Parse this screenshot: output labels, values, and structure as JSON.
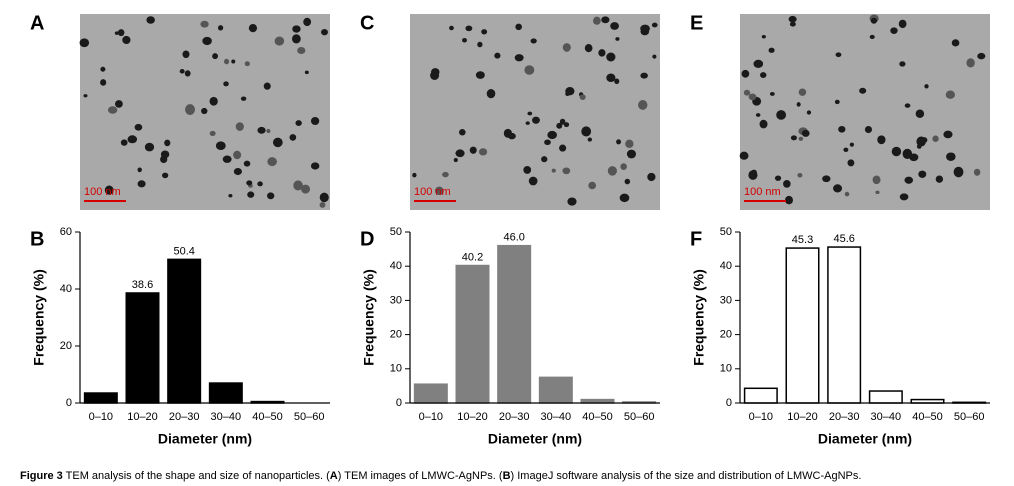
{
  "images": [
    {
      "label": "A",
      "scale_bar": "100 nm"
    },
    {
      "label": "C",
      "scale_bar": "100 nm"
    },
    {
      "label": "E",
      "scale_bar": "100 nm"
    }
  ],
  "chart_data": [
    {
      "type": "bar",
      "panel_label": "B",
      "ylabel": "Frequency (%)",
      "xlabel": "Diameter (nm)",
      "categories": [
        "0–10",
        "10–20",
        "20–30",
        "30–40",
        "40–50",
        "50–60"
      ],
      "values": [
        3.5,
        38.6,
        50.4,
        7,
        0.5,
        0
      ],
      "value_labels": [
        null,
        "38.6",
        "50.4",
        null,
        null,
        null
      ],
      "color": "#000000",
      "edgecolor": "#000000",
      "ylim": [
        0,
        60
      ],
      "yticks": [
        0,
        20,
        40,
        60
      ]
    },
    {
      "type": "bar",
      "panel_label": "D",
      "ylabel": "Frequency (%)",
      "xlabel": "Diameter (nm)",
      "categories": [
        "0–10",
        "10–20",
        "20–30",
        "30–40",
        "40–50",
        "50–60"
      ],
      "values": [
        5.5,
        40.2,
        46,
        7.5,
        1,
        0.3
      ],
      "value_labels": [
        null,
        "40.2",
        "46.0",
        null,
        null,
        null
      ],
      "color": "#808080",
      "edgecolor": "#808080",
      "ylim": [
        0,
        50
      ],
      "yticks": [
        0,
        10,
        20,
        30,
        40,
        50
      ]
    },
    {
      "type": "bar",
      "panel_label": "F",
      "ylabel": "Frequency (%)",
      "xlabel": "Diameter (nm)",
      "categories": [
        "0–10",
        "10–20",
        "20–30",
        "30–40",
        "40–50",
        "50–60"
      ],
      "values": [
        4.3,
        45.3,
        45.6,
        3.5,
        1,
        0.2
      ],
      "value_labels": [
        null,
        "45.3",
        "45.6",
        null,
        null,
        null
      ],
      "color": "#ffffff",
      "edgecolor": "#000000",
      "ylim": [
        0,
        50
      ],
      "yticks": [
        0,
        10,
        20,
        30,
        40,
        50
      ]
    }
  ],
  "caption": [
    {
      "text": "Figure 3",
      "bold": true
    },
    {
      "text": " TEM analysis of the shape and size of nanoparticles. (",
      "bold": false
    },
    {
      "text": "A",
      "bold": true
    },
    {
      "text": ") TEM images of LMWC-AgNPs. (",
      "bold": false
    },
    {
      "text": "B",
      "bold": true
    },
    {
      "text": ") ImageJ software analysis of the size and distribution of LMWC-AgNPs.",
      "bold": false
    }
  ]
}
